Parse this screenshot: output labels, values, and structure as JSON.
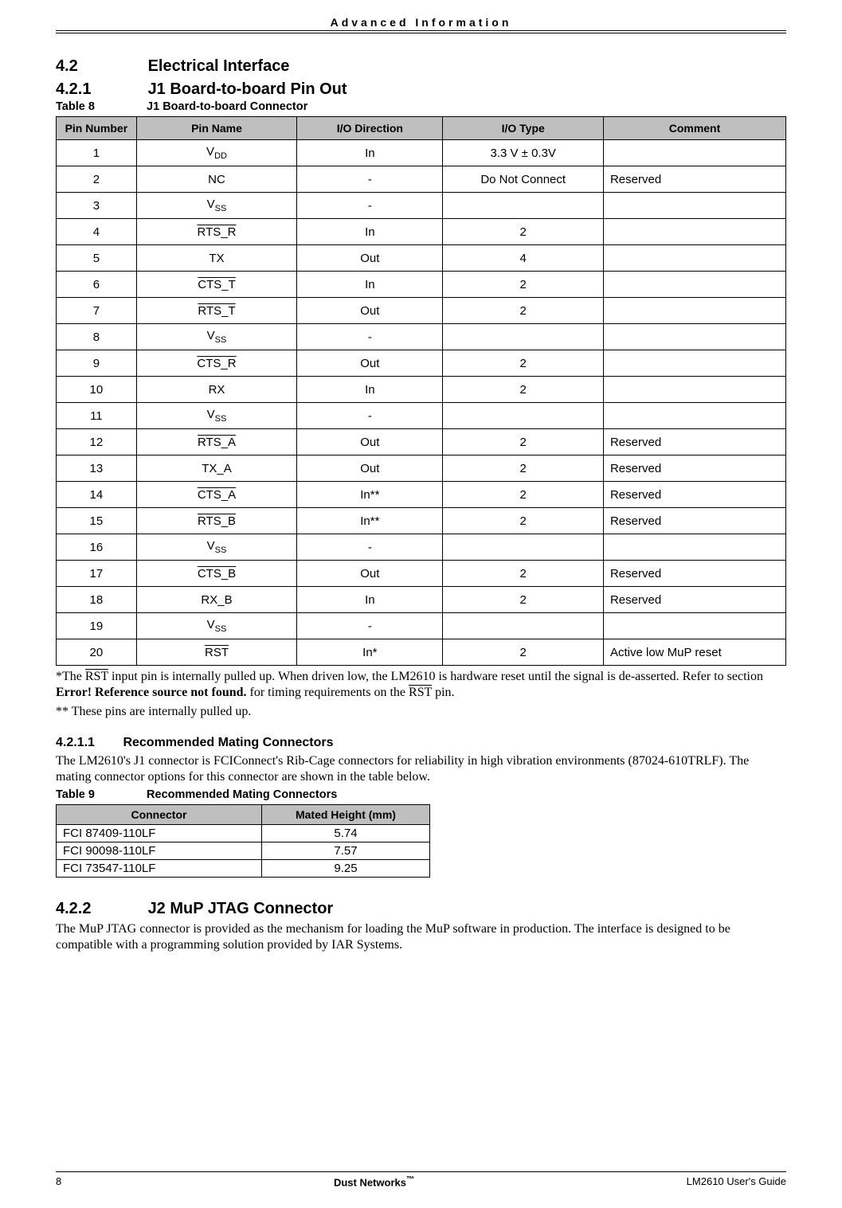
{
  "header": {
    "title": "Advanced Information"
  },
  "sections": {
    "s42_num": "4.2",
    "s42_title": "Electrical Interface",
    "s421_num": "4.2.1",
    "s421_title": "J1 Board-to-board Pin Out",
    "s4211_num": "4.2.1.1",
    "s4211_title": "Recommended Mating Connectors",
    "s422_num": "4.2.2",
    "s422_title": "J2 MuP JTAG Connector"
  },
  "table8": {
    "label": "Table 8",
    "caption": "J1 Board-to-board Connector",
    "columns": [
      "Pin Number",
      "Pin Name",
      "I/O Direction",
      "I/O Type",
      "Comment"
    ],
    "col_widths_pct": [
      11,
      22,
      20,
      22,
      25
    ],
    "rows": [
      {
        "num": "1",
        "name": "V",
        "name_sub": "DD",
        "over": false,
        "dir": "In",
        "type": "3.3 V ± 0.3V",
        "comment": ""
      },
      {
        "num": "2",
        "name": "NC",
        "name_sub": "",
        "over": false,
        "dir": "-",
        "type": "Do Not Connect",
        "comment": "Reserved"
      },
      {
        "num": "3",
        "name": "V",
        "name_sub": "SS",
        "over": false,
        "dir": "-",
        "type": "",
        "comment": ""
      },
      {
        "num": "4",
        "name": "RTS_R",
        "name_sub": "",
        "over": true,
        "dir": "In",
        "type": "2",
        "comment": ""
      },
      {
        "num": "5",
        "name": "TX",
        "name_sub": "",
        "over": false,
        "dir": "Out",
        "type": "4",
        "comment": ""
      },
      {
        "num": "6",
        "name": "CTS_T",
        "name_sub": "",
        "over": true,
        "dir": "In",
        "type": "2",
        "comment": ""
      },
      {
        "num": "7",
        "name": "RTS_T",
        "name_sub": "",
        "over": true,
        "dir": "Out",
        "type": "2",
        "comment": ""
      },
      {
        "num": "8",
        "name": "V",
        "name_sub": "SS",
        "over": false,
        "dir": "-",
        "type": "",
        "comment": ""
      },
      {
        "num": "9",
        "name": "CTS_R",
        "name_sub": "",
        "over": true,
        "dir": "Out",
        "type": "2",
        "comment": ""
      },
      {
        "num": "10",
        "name": "RX",
        "name_sub": "",
        "over": false,
        "dir": "In",
        "type": "2",
        "comment": ""
      },
      {
        "num": "11",
        "name": "V",
        "name_sub": "SS",
        "over": false,
        "dir": "-",
        "type": "",
        "comment": ""
      },
      {
        "num": "12",
        "name": "RTS_A",
        "name_sub": "",
        "over": true,
        "dir": "Out",
        "type": "2",
        "comment": "Reserved"
      },
      {
        "num": "13",
        "name": "TX_A",
        "name_sub": "",
        "over": false,
        "dir": "Out",
        "type": "2",
        "comment": "Reserved"
      },
      {
        "num": "14",
        "name": "CTS_A",
        "name_sub": "",
        "over": true,
        "dir": "In**",
        "type": "2",
        "comment": "Reserved"
      },
      {
        "num": "15",
        "name": "RTS_B",
        "name_sub": "",
        "over": true,
        "dir": "In**",
        "type": "2",
        "comment": "Reserved"
      },
      {
        "num": "16",
        "name": "V",
        "name_sub": "SS",
        "over": false,
        "dir": "-",
        "type": "",
        "comment": ""
      },
      {
        "num": "17",
        "name": "CTS_B",
        "name_sub": "",
        "over": true,
        "dir": "Out",
        "type": "2",
        "comment": "Reserved"
      },
      {
        "num": "18",
        "name": "RX_B",
        "name_sub": "",
        "over": false,
        "dir": "In",
        "type": "2",
        "comment": "Reserved"
      },
      {
        "num": "19",
        "name": "V",
        "name_sub": "SS",
        "over": false,
        "dir": "-",
        "type": "",
        "comment": ""
      },
      {
        "num": "20",
        "name": "RST",
        "name_sub": "",
        "over": true,
        "dir": "In*",
        "type": "2",
        "comment": "Active low MuP reset"
      }
    ]
  },
  "notes": {
    "note1_a": "*The ",
    "note1_rst": "RST",
    "note1_b": " input pin is internally pulled up. When driven low, the LM2610 is hardware reset until the signal is de-asserted. Refer to section ",
    "note1_err": "Error! Reference source not found.",
    "note1_c": " for timing requirements on the ",
    "note1_rst2": "RST",
    "note1_d": " pin.",
    "note2": "** These pins are internally pulled up."
  },
  "para4211": "The LM2610's J1 connector is FCIConnect's Rib-Cage connectors for reliability in high vibration environments (87024-610TRLF). The mating connector options for this connector are shown in the table below.",
  "table9": {
    "label": "Table 9",
    "caption": "Recommended Mating Connectors",
    "columns": [
      "Connector",
      "Mated Height (mm)"
    ],
    "rows": [
      [
        "FCI 87409-110LF",
        "5.74"
      ],
      [
        "FCI 90098-110LF",
        "7.57"
      ],
      [
        "FCI 73547-110LF",
        "9.25"
      ]
    ]
  },
  "para422": "The MuP JTAG connector is provided as the mechanism for loading the MuP software in production. The interface is designed to be compatible with a programming solution provided by IAR Systems.",
  "footer": {
    "page": "8",
    "center_a": "Dust Networks",
    "center_tm": "™",
    "right": "LM2610 User's Guide"
  },
  "styling": {
    "header_bg": "#bfbfbf",
    "border_color": "#000000",
    "body_font": "Times New Roman",
    "heading_font": "Verdana",
    "table_font": "Arial"
  }
}
